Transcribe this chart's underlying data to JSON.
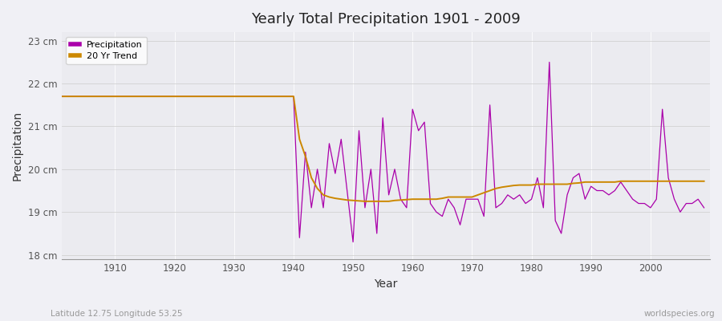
{
  "title": "Yearly Total Precipitation 1901 - 2009",
  "xlabel": "Year",
  "ylabel": "Precipitation",
  "subtitle": "Latitude 12.75 Longitude 53.25",
  "watermark": "worldspecies.org",
  "bg_color": "#f0f0f5",
  "plot_bg_color": "#ebebf0",
  "ylim": [
    17.9,
    23.2
  ],
  "yticks": [
    18,
    19,
    20,
    21,
    22,
    23
  ],
  "ytick_labels": [
    "18 cm",
    "19 cm",
    "20 cm",
    "21 cm",
    "22 cm",
    "23 cm"
  ],
  "xlim": [
    1901,
    2010
  ],
  "xticks": [
    1910,
    1920,
    1930,
    1940,
    1950,
    1960,
    1970,
    1980,
    1990,
    2000
  ],
  "precip_color": "#aa00aa",
  "trend_color": "#cc8800",
  "precip_linewidth": 0.9,
  "trend_linewidth": 1.4,
  "years": [
    1901,
    1902,
    1903,
    1904,
    1905,
    1906,
    1907,
    1908,
    1909,
    1910,
    1911,
    1912,
    1913,
    1914,
    1915,
    1916,
    1917,
    1918,
    1919,
    1920,
    1921,
    1922,
    1923,
    1924,
    1925,
    1926,
    1927,
    1928,
    1929,
    1930,
    1931,
    1932,
    1933,
    1934,
    1935,
    1936,
    1937,
    1938,
    1939,
    1940,
    1941,
    1942,
    1943,
    1944,
    1945,
    1946,
    1947,
    1948,
    1949,
    1950,
    1951,
    1952,
    1953,
    1954,
    1955,
    1956,
    1957,
    1958,
    1959,
    1960,
    1961,
    1962,
    1963,
    1964,
    1965,
    1966,
    1967,
    1968,
    1969,
    1970,
    1971,
    1972,
    1973,
    1974,
    1975,
    1976,
    1977,
    1978,
    1979,
    1980,
    1981,
    1982,
    1983,
    1984,
    1985,
    1986,
    1987,
    1988,
    1989,
    1990,
    1991,
    1992,
    1993,
    1994,
    1995,
    1996,
    1997,
    1998,
    1999,
    2000,
    2001,
    2002,
    2003,
    2004,
    2005,
    2006,
    2007,
    2008,
    2009
  ],
  "precip": [
    21.7,
    21.7,
    21.7,
    21.7,
    21.7,
    21.7,
    21.7,
    21.7,
    21.7,
    21.7,
    21.7,
    21.7,
    21.7,
    21.7,
    21.7,
    21.7,
    21.7,
    21.7,
    21.7,
    21.7,
    21.7,
    21.7,
    21.7,
    21.7,
    21.7,
    21.7,
    21.7,
    21.7,
    21.7,
    21.7,
    21.7,
    21.7,
    21.7,
    21.7,
    21.7,
    21.7,
    21.7,
    21.7,
    21.7,
    21.7,
    18.4,
    20.4,
    19.1,
    20.0,
    19.1,
    20.6,
    19.9,
    20.7,
    19.5,
    18.3,
    20.9,
    19.1,
    20.0,
    18.5,
    21.2,
    19.4,
    20.0,
    19.3,
    19.1,
    21.4,
    20.9,
    21.1,
    19.2,
    19.0,
    18.9,
    19.3,
    19.1,
    18.7,
    19.3,
    19.3,
    19.3,
    18.9,
    21.5,
    19.1,
    19.2,
    19.4,
    19.3,
    19.4,
    19.2,
    19.3,
    19.8,
    19.1,
    22.5,
    18.8,
    18.5,
    19.4,
    19.8,
    19.9,
    19.3,
    19.6,
    19.5,
    19.5,
    19.4,
    19.5,
    19.7,
    19.5,
    19.3,
    19.2,
    19.2,
    19.1,
    19.3,
    21.4,
    19.8,
    19.3,
    19.0,
    19.2,
    19.2,
    19.3,
    19.1
  ],
  "trend": [
    21.7,
    21.7,
    21.7,
    21.7,
    21.7,
    21.7,
    21.7,
    21.7,
    21.7,
    21.7,
    21.7,
    21.7,
    21.7,
    21.7,
    21.7,
    21.7,
    21.7,
    21.7,
    21.7,
    21.7,
    21.7,
    21.7,
    21.7,
    21.7,
    21.7,
    21.7,
    21.7,
    21.7,
    21.7,
    21.7,
    21.7,
    21.7,
    21.7,
    21.7,
    21.7,
    21.7,
    21.7,
    21.7,
    21.7,
    21.7,
    20.7,
    20.3,
    19.8,
    19.55,
    19.4,
    19.35,
    19.32,
    19.3,
    19.28,
    19.27,
    19.26,
    19.25,
    19.25,
    19.25,
    19.25,
    19.25,
    19.27,
    19.28,
    19.29,
    19.3,
    19.3,
    19.3,
    19.3,
    19.3,
    19.32,
    19.35,
    19.35,
    19.35,
    19.35,
    19.35,
    19.4,
    19.45,
    19.5,
    19.55,
    19.58,
    19.6,
    19.62,
    19.63,
    19.63,
    19.63,
    19.65,
    19.65,
    19.65,
    19.65,
    19.65,
    19.65,
    19.67,
    19.68,
    19.7,
    19.7,
    19.7,
    19.7,
    19.7,
    19.7,
    19.72,
    19.72,
    19.72,
    19.72,
    19.72,
    19.72,
    19.72,
    19.72,
    19.72,
    19.72,
    19.72,
    19.72,
    19.72,
    19.72,
    19.72
  ]
}
